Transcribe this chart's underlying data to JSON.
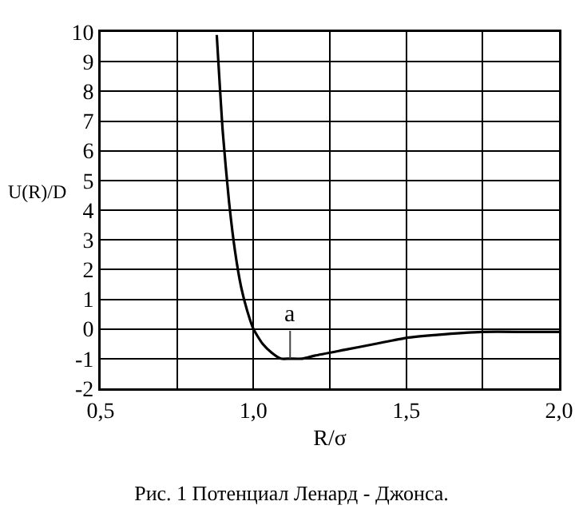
{
  "chart_data": {
    "type": "line",
    "title": "Рис. 1 Потенциал Ленард - Джонса.",
    "xlabel": "R/σ",
    "ylabel": "U(R)/D",
    "x": [
      0.88,
      0.9,
      0.92,
      0.94,
      0.96,
      0.98,
      1.0,
      1.03,
      1.06,
      1.09,
      1.12,
      1.16,
      1.2,
      1.3,
      1.4,
      1.5,
      1.6,
      1.75,
      1.9,
      2.0
    ],
    "series": [
      {
        "color": "#000000",
        "values": [
          9.9,
          6.6,
          4.3,
          2.6,
          1.4,
          0.6,
          0,
          -0.5,
          -0.8,
          -1.0,
          -1.0,
          -1.0,
          -0.9,
          -0.7,
          -0.5,
          -0.3,
          -0.2,
          -0.1,
          -0.1,
          -0.1
        ]
      }
    ],
    "xlim": [
      0.5,
      2.0
    ],
    "xticks": [
      {
        "value": 0.5,
        "label": "0,5"
      },
      {
        "value": 0.75,
        "label": null
      },
      {
        "value": 1.0,
        "label": "1,0"
      },
      {
        "value": 1.25,
        "label": null
      },
      {
        "value": 1.5,
        "label": "1,5"
      },
      {
        "value": 1.75,
        "label": null
      },
      {
        "value": 2.0,
        "label": "2,0"
      }
    ],
    "ylim": [
      -2,
      10
    ],
    "yticks": [
      -2,
      -1,
      0,
      1,
      2,
      3,
      4,
      5,
      6,
      7,
      8,
      9,
      10
    ],
    "annotations": [
      {
        "text": "a",
        "x": 1.12,
        "y": -1
      }
    ],
    "grid": true,
    "marker": "none",
    "line_style": "solid"
  }
}
